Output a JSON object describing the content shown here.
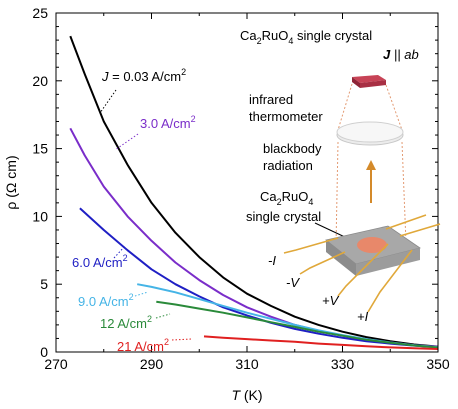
{
  "chart_data": {
    "type": "line",
    "title": "",
    "xlabel": "T (K)",
    "xlabel_main": "T",
    "xlabel_unit": " (K)",
    "ylabel": "ρ (Ω cm)",
    "xlim": [
      270,
      350
    ],
    "ylim": [
      0,
      25
    ],
    "x_ticks": [
      270,
      290,
      310,
      330,
      350
    ],
    "y_ticks": [
      0,
      5,
      10,
      15,
      20,
      25
    ],
    "grid": false,
    "series": [
      {
        "name": "J = 0.03 A/cm2",
        "color": "#000000",
        "x": [
          273,
          276,
          280,
          285,
          290,
          295,
          300,
          305,
          310,
          315,
          320,
          325,
          330,
          335,
          340,
          345,
          350
        ],
        "y": [
          23.3,
          20.5,
          17.0,
          13.8,
          11.0,
          8.8,
          7.0,
          5.5,
          4.3,
          3.4,
          2.6,
          2.0,
          1.5,
          1.1,
          0.8,
          0.55,
          0.4
        ]
      },
      {
        "name": "3.0 A/cm2",
        "color": "#7a2dc9",
        "x": [
          273,
          276,
          280,
          285,
          290,
          295,
          300,
          305,
          310,
          315,
          320,
          325,
          330,
          335,
          340,
          345,
          350
        ],
        "y": [
          16.5,
          14.5,
          12.2,
          10.0,
          8.2,
          6.6,
          5.3,
          4.2,
          3.3,
          2.6,
          2.0,
          1.55,
          1.2,
          0.9,
          0.7,
          0.5,
          0.38
        ]
      },
      {
        "name": "6.0 A/cm2",
        "color": "#1f1fc4",
        "x": [
          275,
          280,
          285,
          290,
          295,
          300,
          305,
          310,
          315,
          320,
          325,
          330,
          335,
          340,
          345,
          350
        ],
        "y": [
          10.6,
          9.0,
          7.5,
          6.1,
          5.0,
          4.1,
          3.3,
          2.7,
          2.15,
          1.7,
          1.35,
          1.05,
          0.8,
          0.62,
          0.47,
          0.35
        ]
      },
      {
        "name": "9.0 A/cm2",
        "color": "#45b4e6",
        "x": [
          287,
          290,
          295,
          300,
          305,
          310,
          315,
          320,
          325,
          330,
          335,
          340,
          345,
          350
        ],
        "y": [
          5.0,
          4.8,
          4.4,
          3.9,
          3.4,
          2.9,
          2.45,
          2.0,
          1.6,
          1.25,
          0.95,
          0.7,
          0.5,
          0.35
        ]
      },
      {
        "name": "12 A/cm2",
        "color": "#2a8a3a",
        "x": [
          291,
          295,
          300,
          305,
          310,
          315,
          320,
          325,
          330,
          335,
          340,
          345,
          350
        ],
        "y": [
          3.7,
          3.5,
          3.2,
          2.9,
          2.55,
          2.2,
          1.85,
          1.5,
          1.2,
          0.9,
          0.68,
          0.48,
          0.33
        ]
      },
      {
        "name": "21 A/cm2",
        "color": "#e02020",
        "x": [
          301,
          305,
          310,
          315,
          320,
          325,
          330,
          335,
          340,
          345,
          350
        ],
        "y": [
          1.15,
          1.05,
          0.95,
          0.85,
          0.75,
          0.62,
          0.52,
          0.42,
          0.34,
          0.27,
          0.22
        ]
      }
    ],
    "labels": [
      {
        "main": "J",
        "rest": " = 0.03 A/cm",
        "sup": "2",
        "color": "#000000"
      },
      {
        "main": "",
        "rest": "3.0 A/cm",
        "sup": "2",
        "color": "#7a2dc9"
      },
      {
        "main": "",
        "rest": "6.0 A/cm",
        "sup": "2",
        "color": "#1f1fc4"
      },
      {
        "main": "",
        "rest": "9.0 A/cm",
        "sup": "2",
        "color": "#45b4e6"
      },
      {
        "main": "",
        "rest": "12 A/cm",
        "sup": "2",
        "color": "#2a8a3a"
      },
      {
        "main": "",
        "rest": "21 A/cm",
        "sup": "2",
        "color": "#e02020"
      }
    ]
  },
  "inset": {
    "title_pre": "Ca",
    "title_sub1": "2",
    "title_mid": "RuO",
    "title_sub2": "4",
    "title_post": " single crystal",
    "current_J": "J",
    "current_rest": " || ab",
    "thermometer_line1": "infrared",
    "thermometer_line2": "thermometer",
    "blackbody_line1": "blackbody",
    "blackbody_line2": "radiation",
    "crystal_pre": "Ca",
    "crystal_sub1": "2",
    "crystal_mid": "RuO",
    "crystal_sub2": "4",
    "crystal_line2": "single crystal",
    "lead_minus_I": "-I",
    "lead_minus_V": "-V",
    "lead_plus_V": "+V",
    "lead_plus_I": "+I"
  }
}
